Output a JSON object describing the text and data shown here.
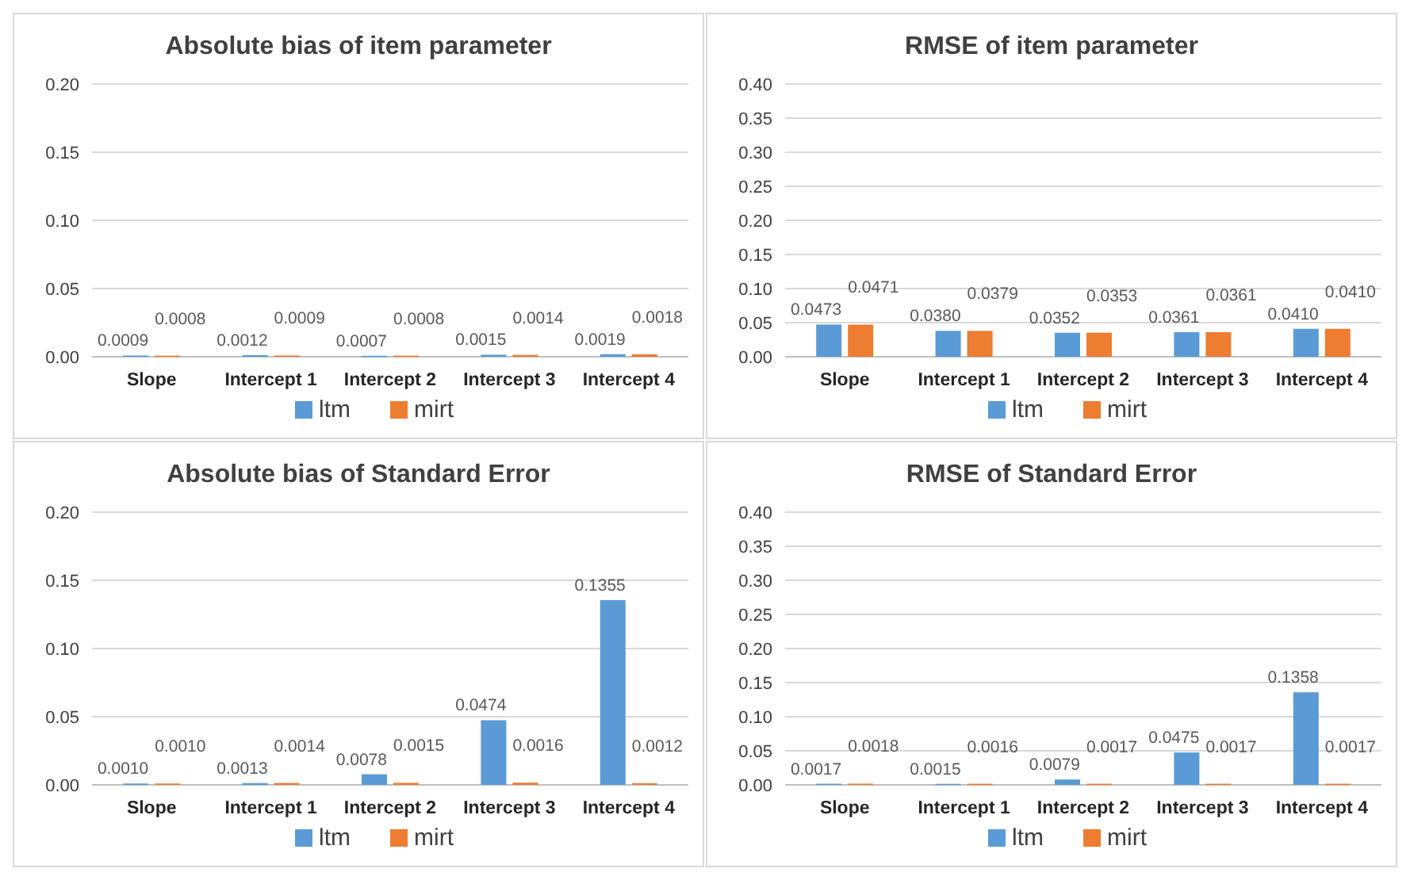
{
  "chart_data": [
    {
      "type": "bar",
      "title": "Absolute bias of item parameter",
      "categories": [
        "Slope",
        "Intercept 1",
        "Intercept 2",
        "Intercept 3",
        "Intercept 4"
      ],
      "series": [
        {
          "name": "ltm",
          "color": "#5b9bd5",
          "values": [
            0.0009,
            0.0012,
            0.0007,
            0.0015,
            0.0019
          ],
          "value_labels": [
            "0.0009",
            "0.0012",
            "0.0007",
            "0.0015",
            "0.0019"
          ]
        },
        {
          "name": "mirt",
          "color": "#ed7d31",
          "values": [
            0.0008,
            0.0009,
            0.0008,
            0.0014,
            0.0018
          ],
          "value_labels": [
            "0.0008",
            "0.0009",
            "0.0008",
            "0.0014",
            "0.0018"
          ]
        }
      ],
      "ylim": [
        0,
        0.2
      ],
      "yticks": [
        {
          "value": 0,
          "label": "0.00"
        },
        {
          "value": 0.05,
          "label": "0.05"
        },
        {
          "value": 0.1,
          "label": "0.10"
        },
        {
          "value": 0.15,
          "label": "0.15"
        },
        {
          "value": 0.2,
          "label": "0.20"
        }
      ],
      "grid": "y",
      "legend": "bottom"
    },
    {
      "type": "bar",
      "title": "RMSE of item parameter",
      "categories": [
        "Slope",
        "Intercept 1",
        "Intercept 2",
        "Intercept 3",
        "Intercept 4"
      ],
      "series": [
        {
          "name": "ltm",
          "color": "#5b9bd5",
          "values": [
            0.0473,
            0.038,
            0.0352,
            0.0361,
            0.041
          ],
          "value_labels": [
            "0.0473",
            "0.0380",
            "0.0352",
            "0.0361",
            "0.0410"
          ]
        },
        {
          "name": "mirt",
          "color": "#ed7d31",
          "values": [
            0.0471,
            0.0379,
            0.0353,
            0.0361,
            0.041
          ],
          "value_labels": [
            "0.0471",
            "0.0379",
            "0.0353",
            "0.0361",
            "0.0410"
          ]
        }
      ],
      "ylim": [
        0,
        0.4
      ],
      "yticks": [
        {
          "value": 0,
          "label": "0.00"
        },
        {
          "value": 0.05,
          "label": "0.05"
        },
        {
          "value": 0.1,
          "label": "0.10"
        },
        {
          "value": 0.15,
          "label": "0.15"
        },
        {
          "value": 0.2,
          "label": "0.20"
        },
        {
          "value": 0.25,
          "label": "0.25"
        },
        {
          "value": 0.3,
          "label": "0.30"
        },
        {
          "value": 0.35,
          "label": "0.35"
        },
        {
          "value": 0.4,
          "label": "0.40"
        }
      ],
      "grid": "y",
      "legend": "bottom"
    },
    {
      "type": "bar",
      "title": "Absolute bias of Standard Error",
      "categories": [
        "Slope",
        "Intercept 1",
        "Intercept 2",
        "Intercept 3",
        "Intercept 4"
      ],
      "series": [
        {
          "name": "ltm",
          "color": "#5b9bd5",
          "values": [
            0.001,
            0.0013,
            0.0078,
            0.0474,
            0.1355
          ],
          "value_labels": [
            "0.0010",
            "0.0013",
            "0.0078",
            "0.0474",
            "0.1355"
          ]
        },
        {
          "name": "mirt",
          "color": "#ed7d31",
          "values": [
            0.001,
            0.0014,
            0.0015,
            0.0016,
            0.0012
          ],
          "value_labels": [
            "0.0010",
            "0.0014",
            "0.0015",
            "0.0016",
            "0.0012"
          ]
        }
      ],
      "ylim": [
        0,
        0.2
      ],
      "yticks": [
        {
          "value": 0,
          "label": "0.00"
        },
        {
          "value": 0.05,
          "label": "0.05"
        },
        {
          "value": 0.1,
          "label": "0.10"
        },
        {
          "value": 0.15,
          "label": "0.15"
        },
        {
          "value": 0.2,
          "label": "0.20"
        }
      ],
      "grid": "y",
      "legend": "bottom"
    },
    {
      "type": "bar",
      "title": "RMSE of Standard Error",
      "categories": [
        "Slope",
        "Intercept 1",
        "Intercept 2",
        "Intercept 3",
        "Intercept 4"
      ],
      "series": [
        {
          "name": "ltm",
          "color": "#5b9bd5",
          "values": [
            0.0017,
            0.0015,
            0.0079,
            0.0475,
            0.1358
          ],
          "value_labels": [
            "0.0017",
            "0.0015",
            "0.0079",
            "0.0475",
            "0.1358"
          ]
        },
        {
          "name": "mirt",
          "color": "#ed7d31",
          "values": [
            0.0018,
            0.0016,
            0.0017,
            0.0017,
            0.0017
          ],
          "value_labels": [
            "0.0018",
            "0.0016",
            "0.0017",
            "0.0017",
            "0.0017"
          ]
        }
      ],
      "ylim": [
        0,
        0.4
      ],
      "yticks": [
        {
          "value": 0,
          "label": "0.00"
        },
        {
          "value": 0.05,
          "label": "0.05"
        },
        {
          "value": 0.1,
          "label": "0.10"
        },
        {
          "value": 0.15,
          "label": "0.15"
        },
        {
          "value": 0.2,
          "label": "0.20"
        },
        {
          "value": 0.25,
          "label": "0.25"
        },
        {
          "value": 0.3,
          "label": "0.30"
        },
        {
          "value": 0.35,
          "label": "0.35"
        },
        {
          "value": 0.4,
          "label": "0.40"
        }
      ],
      "grid": "y",
      "legend": "bottom"
    }
  ]
}
